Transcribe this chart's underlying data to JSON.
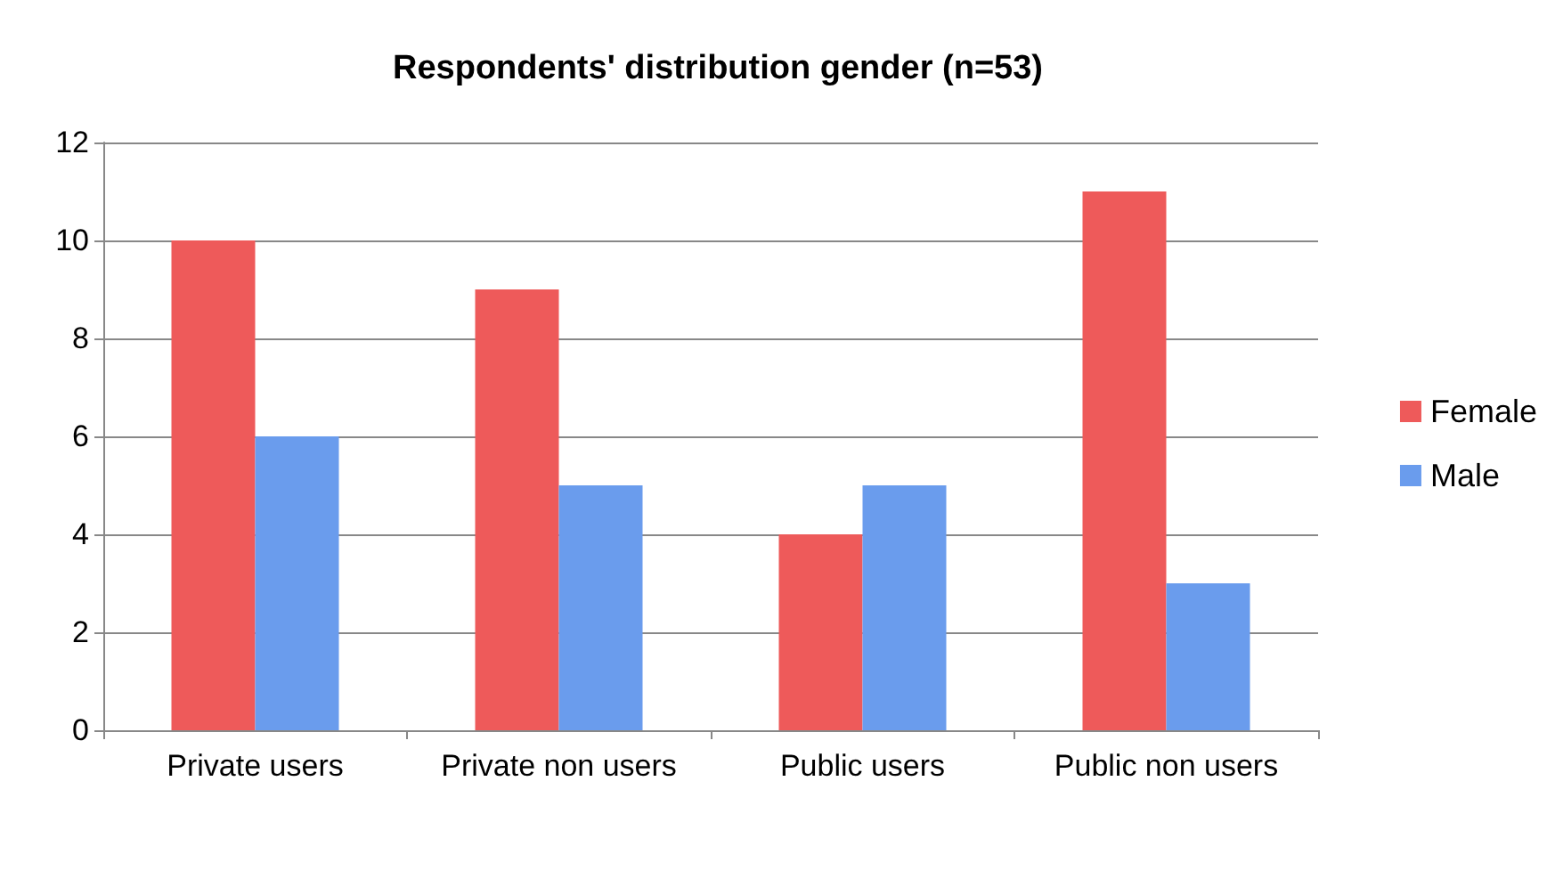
{
  "chart_data": {
    "type": "bar",
    "title": "Respondents' distribution gender (n=53)",
    "categories": [
      "Private users",
      "Private non users",
      "Public users",
      "Public non users"
    ],
    "series": [
      {
        "name": "Female",
        "color": "#ee5a5a",
        "values": [
          10,
          9,
          4,
          11
        ]
      },
      {
        "name": "Male",
        "color": "#6a9ced",
        "values": [
          6,
          5,
          5,
          3
        ]
      }
    ],
    "ylim": [
      0,
      12
    ],
    "yticks": [
      0,
      2,
      4,
      6,
      8,
      10,
      12
    ],
    "grid": "y",
    "legend": "right"
  }
}
